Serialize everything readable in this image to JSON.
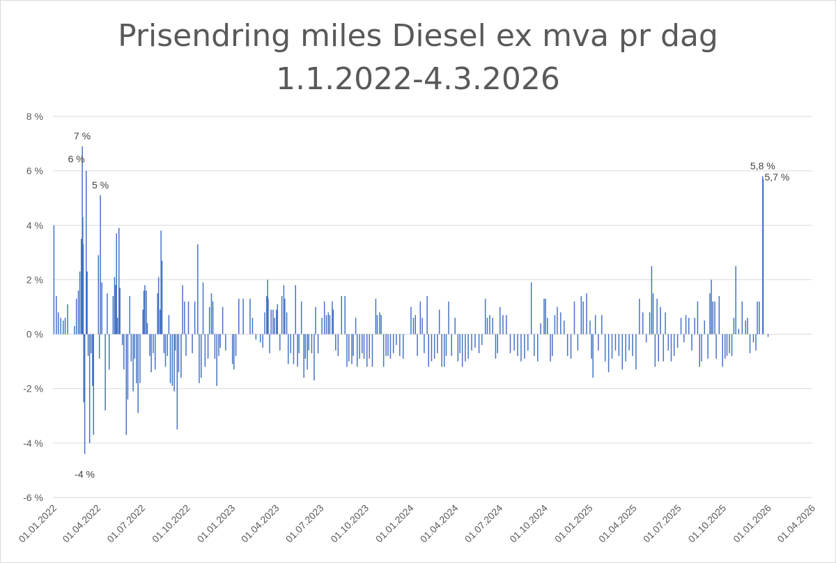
{
  "chart_data": {
    "type": "bar",
    "title_line1": "Prisendring miles Diesel ex mva pr dag",
    "title_line2": "1.1.2022-4.3.2026",
    "xlabel": "",
    "ylabel": "",
    "ylim": [
      -6,
      8
    ],
    "y_ticks": [
      {
        "value": 8,
        "label": "8 %"
      },
      {
        "value": 6,
        "label": "6 %"
      },
      {
        "value": 4,
        "label": "4 %"
      },
      {
        "value": 2,
        "label": "2 %"
      },
      {
        "value": 0,
        "label": "0 %"
      },
      {
        "value": -2,
        "label": "-2 %"
      },
      {
        "value": -4,
        "label": "-4 %"
      },
      {
        "value": -6,
        "label": "-6 %"
      }
    ],
    "x_range": [
      "2022-01-01",
      "2026-04-01"
    ],
    "x_ticks": [
      {
        "date": "2022-01-01",
        "label": "01.01.2022"
      },
      {
        "date": "2022-04-01",
        "label": "01.04.2022"
      },
      {
        "date": "2022-07-01",
        "label": "01.07.2022"
      },
      {
        "date": "2022-10-01",
        "label": "01.10.2022"
      },
      {
        "date": "2023-01-01",
        "label": "01.01.2023"
      },
      {
        "date": "2023-04-01",
        "label": "01.04.2023"
      },
      {
        "date": "2023-07-01",
        "label": "01.07.2023"
      },
      {
        "date": "2023-10-01",
        "label": "01.10.2023"
      },
      {
        "date": "2024-01-01",
        "label": "01.01.2024"
      },
      {
        "date": "2024-04-01",
        "label": "01.04.2024"
      },
      {
        "date": "2024-07-01",
        "label": "01.07.2024"
      },
      {
        "date": "2024-10-01",
        "label": "01.10.2024"
      },
      {
        "date": "2025-01-01",
        "label": "01.01.2025"
      },
      {
        "date": "2025-04-01",
        "label": "01.04.2025"
      },
      {
        "date": "2025-07-01",
        "label": "01.07.2025"
      },
      {
        "date": "2025-10-01",
        "label": "01.10.2025"
      },
      {
        "date": "2026-01-01",
        "label": "01.01.2026"
      },
      {
        "date": "2026-04-01",
        "label": "01.04.2026"
      }
    ],
    "grid": true,
    "legend": "none",
    "bar_color": "#4472c4",
    "values": [
      [
        "2022-01-03",
        4.0
      ],
      [
        "2022-01-08",
        1.4
      ],
      [
        "2022-01-12",
        0.8
      ],
      [
        "2022-01-17",
        0.6
      ],
      [
        "2022-01-22",
        0.5
      ],
      [
        "2022-01-26",
        0.6
      ],
      [
        "2022-01-31",
        1.1
      ],
      [
        "2022-02-14",
        0.3
      ],
      [
        "2022-02-18",
        1.3
      ],
      [
        "2022-02-22",
        1.6
      ],
      [
        "2022-02-25",
        2.3
      ],
      [
        "2022-02-28",
        3.5
      ],
      [
        "2022-03-02",
        6.9
      ],
      [
        "2022-03-03",
        4.3
      ],
      [
        "2022-03-04",
        3.3
      ],
      [
        "2022-03-05",
        -2.5
      ],
      [
        "2022-03-07",
        -4.4
      ],
      [
        "2022-03-10",
        6.0
      ],
      [
        "2022-03-12",
        2.3
      ],
      [
        "2022-03-14",
        -0.8
      ],
      [
        "2022-03-17",
        -4.0
      ],
      [
        "2022-03-20",
        -0.7
      ],
      [
        "2022-03-23",
        -1.9
      ],
      [
        "2022-03-25",
        -3.7
      ],
      [
        "2022-04-04",
        2.9
      ],
      [
        "2022-04-06",
        -0.9
      ],
      [
        "2022-04-08",
        5.1
      ],
      [
        "2022-04-11",
        1.9
      ],
      [
        "2022-04-18",
        -2.8
      ],
      [
        "2022-04-22",
        1.5
      ],
      [
        "2022-04-26",
        -1.3
      ],
      [
        "2022-05-04",
        1.4
      ],
      [
        "2022-05-07",
        2.1
      ],
      [
        "2022-05-09",
        1.8
      ],
      [
        "2022-05-11",
        3.7
      ],
      [
        "2022-05-13",
        0.6
      ],
      [
        "2022-05-16",
        3.9
      ],
      [
        "2022-05-18",
        1.7
      ],
      [
        "2022-05-23",
        -0.4
      ],
      [
        "2022-05-26",
        -1.3
      ],
      [
        "2022-05-31",
        -3.7
      ],
      [
        "2022-06-03",
        -2.4
      ],
      [
        "2022-06-07",
        1.4
      ],
      [
        "2022-06-10",
        -1.0
      ],
      [
        "2022-06-14",
        -2.1
      ],
      [
        "2022-06-17",
        -0.9
      ],
      [
        "2022-06-21",
        -1.8
      ],
      [
        "2022-06-24",
        -2.9
      ],
      [
        "2022-06-28",
        -1.8
      ],
      [
        "2022-07-04",
        0.9
      ],
      [
        "2022-07-06",
        1.6
      ],
      [
        "2022-07-08",
        1.8
      ],
      [
        "2022-07-11",
        1.6
      ],
      [
        "2022-07-13",
        0.4
      ],
      [
        "2022-07-18",
        -0.8
      ],
      [
        "2022-07-21",
        -1.4
      ],
      [
        "2022-07-25",
        -0.7
      ],
      [
        "2022-07-29",
        -1.3
      ],
      [
        "2022-08-03",
        1.5
      ],
      [
        "2022-08-05",
        2.1
      ],
      [
        "2022-08-08",
        0.9
      ],
      [
        "2022-08-10",
        3.8
      ],
      [
        "2022-08-12",
        2.7
      ],
      [
        "2022-08-16",
        -0.7
      ],
      [
        "2022-08-19",
        -1.2
      ],
      [
        "2022-08-23",
        -0.8
      ],
      [
        "2022-08-26",
        0.7
      ],
      [
        "2022-08-29",
        -1.8
      ],
      [
        "2022-09-02",
        -1.9
      ],
      [
        "2022-09-06",
        -2.1
      ],
      [
        "2022-09-08",
        -0.6
      ],
      [
        "2022-09-12",
        -3.5
      ],
      [
        "2022-09-15",
        -1.4
      ],
      [
        "2022-09-20",
        -1.6
      ],
      [
        "2022-09-23",
        1.8
      ],
      [
        "2022-09-27",
        1.2
      ],
      [
        "2022-09-30",
        -0.8
      ],
      [
        "2022-10-05",
        1.2
      ],
      [
        "2022-10-13",
        -0.7
      ],
      [
        "2022-10-18",
        1.2
      ],
      [
        "2022-10-24",
        3.3
      ],
      [
        "2022-10-27",
        -1.8
      ],
      [
        "2022-10-31",
        -1.6
      ],
      [
        "2022-11-04",
        1.9
      ],
      [
        "2022-11-08",
        -1.2
      ],
      [
        "2022-11-14",
        -0.9
      ],
      [
        "2022-11-17",
        1.0
      ],
      [
        "2022-11-21",
        1.5
      ],
      [
        "2022-11-24",
        1.2
      ],
      [
        "2022-11-28",
        -0.9
      ],
      [
        "2022-12-02",
        -1.9
      ],
      [
        "2022-12-06",
        -0.8
      ],
      [
        "2022-12-09",
        -0.5
      ],
      [
        "2022-12-14",
        1.0
      ],
      [
        "2022-12-20",
        -0.6
      ],
      [
        "2023-01-03",
        -1.1
      ],
      [
        "2023-01-06",
        -1.3
      ],
      [
        "2023-01-10",
        -0.8
      ],
      [
        "2023-01-16",
        1.3
      ],
      [
        "2023-01-25",
        1.3
      ],
      [
        "2023-02-08",
        1.3
      ],
      [
        "2023-02-13",
        0.6
      ],
      [
        "2023-02-20",
        -0.2
      ],
      [
        "2023-03-01",
        -0.3
      ],
      [
        "2023-03-06",
        -0.5
      ],
      [
        "2023-03-10",
        0.8
      ],
      [
        "2023-03-14",
        1.4
      ],
      [
        "2023-03-16",
        2.0
      ],
      [
        "2023-03-17",
        1.3
      ],
      [
        "2023-03-20",
        -0.7
      ],
      [
        "2023-03-23",
        0.9
      ],
      [
        "2023-03-27",
        0.9
      ],
      [
        "2023-03-30",
        0.6
      ],
      [
        "2023-04-03",
        0.9
      ],
      [
        "2023-04-05",
        1.1
      ],
      [
        "2023-04-10",
        -0.6
      ],
      [
        "2023-04-14",
        1.4
      ],
      [
        "2023-04-18",
        1.8
      ],
      [
        "2023-04-20",
        1.3
      ],
      [
        "2023-04-24",
        0.8
      ],
      [
        "2023-04-27",
        -1.1
      ],
      [
        "2023-05-02",
        -0.7
      ],
      [
        "2023-05-08",
        -1.1
      ],
      [
        "2023-05-12",
        1.8
      ],
      [
        "2023-05-16",
        -1.2
      ],
      [
        "2023-05-19",
        -0.7
      ],
      [
        "2023-05-24",
        1.2
      ],
      [
        "2023-05-29",
        -1.6
      ],
      [
        "2023-06-01",
        -0.9
      ],
      [
        "2023-06-05",
        -1.3
      ],
      [
        "2023-06-08",
        -0.6
      ],
      [
        "2023-06-14",
        -0.7
      ],
      [
        "2023-06-19",
        -1.7
      ],
      [
        "2023-06-22",
        1.0
      ],
      [
        "2023-06-27",
        -0.7
      ],
      [
        "2023-07-05",
        0.6
      ],
      [
        "2023-07-10",
        1.2
      ],
      [
        "2023-07-14",
        0.7
      ],
      [
        "2023-07-18",
        0.8
      ],
      [
        "2023-07-21",
        0.7
      ],
      [
        "2023-07-26",
        1.2
      ],
      [
        "2023-07-28",
        0.9
      ],
      [
        "2023-08-02",
        -0.6
      ],
      [
        "2023-08-07",
        -0.8
      ],
      [
        "2023-08-14",
        1.4
      ],
      [
        "2023-08-21",
        1.4
      ],
      [
        "2023-08-25",
        -1.2
      ],
      [
        "2023-08-29",
        -1.0
      ],
      [
        "2023-09-04",
        -1.1
      ],
      [
        "2023-09-07",
        -0.8
      ],
      [
        "2023-09-12",
        0.6
      ],
      [
        "2023-09-15",
        -1.2
      ],
      [
        "2023-09-20",
        -0.9
      ],
      [
        "2023-09-25",
        -0.7
      ],
      [
        "2023-09-29",
        -0.9
      ],
      [
        "2023-10-05",
        -1.2
      ],
      [
        "2023-10-10",
        -0.9
      ],
      [
        "2023-10-16",
        -1.2
      ],
      [
        "2023-10-23",
        1.3
      ],
      [
        "2023-10-26",
        0.7
      ],
      [
        "2023-10-31",
        0.8
      ],
      [
        "2023-11-03",
        0.7
      ],
      [
        "2023-11-08",
        -1.2
      ],
      [
        "2023-11-13",
        -0.8
      ],
      [
        "2023-11-17",
        -0.8
      ],
      [
        "2023-11-22",
        -0.9
      ],
      [
        "2023-11-28",
        -0.7
      ],
      [
        "2023-12-04",
        -0.4
      ],
      [
        "2023-12-11",
        -0.8
      ],
      [
        "2023-12-18",
        -0.9
      ],
      [
        "2024-01-03",
        1.0
      ],
      [
        "2024-01-08",
        0.6
      ],
      [
        "2024-01-12",
        0.7
      ],
      [
        "2024-01-16",
        -0.8
      ],
      [
        "2024-01-22",
        1.2
      ],
      [
        "2024-01-26",
        0.6
      ],
      [
        "2024-01-30",
        -0.7
      ],
      [
        "2024-02-05",
        1.4
      ],
      [
        "2024-02-08",
        -1.2
      ],
      [
        "2024-02-14",
        -1.0
      ],
      [
        "2024-02-20",
        -0.9
      ],
      [
        "2024-02-26",
        -0.7
      ],
      [
        "2024-03-01",
        0.9
      ],
      [
        "2024-03-06",
        -1.2
      ],
      [
        "2024-03-11",
        -1.2
      ],
      [
        "2024-03-15",
        -0.8
      ],
      [
        "2024-03-20",
        1.2
      ],
      [
        "2024-03-26",
        -0.8
      ],
      [
        "2024-04-02",
        0.6
      ],
      [
        "2024-04-08",
        -1.0
      ],
      [
        "2024-04-12",
        -0.7
      ],
      [
        "2024-04-17",
        -1.2
      ],
      [
        "2024-04-23",
        -1.0
      ],
      [
        "2024-04-29",
        -0.9
      ],
      [
        "2024-05-06",
        -0.6
      ],
      [
        "2024-05-13",
        -0.5
      ],
      [
        "2024-05-21",
        -0.7
      ],
      [
        "2024-05-27",
        -0.4
      ],
      [
        "2024-06-03",
        1.3
      ],
      [
        "2024-06-07",
        0.6
      ],
      [
        "2024-06-12",
        0.7
      ],
      [
        "2024-06-18",
        0.6
      ],
      [
        "2024-06-24",
        -0.9
      ],
      [
        "2024-06-28",
        -0.7
      ],
      [
        "2024-07-03",
        1.0
      ],
      [
        "2024-07-09",
        0.7
      ],
      [
        "2024-07-16",
        0.7
      ],
      [
        "2024-07-24",
        -0.7
      ],
      [
        "2024-08-01",
        -0.6
      ],
      [
        "2024-08-08",
        -0.8
      ],
      [
        "2024-08-15",
        -1.0
      ],
      [
        "2024-08-22",
        -0.9
      ],
      [
        "2024-08-29",
        -0.6
      ],
      [
        "2024-09-05",
        1.9
      ],
      [
        "2024-09-11",
        -0.8
      ],
      [
        "2024-09-18",
        -1.0
      ],
      [
        "2024-09-24",
        0.4
      ],
      [
        "2024-10-01",
        1.3
      ],
      [
        "2024-10-04",
        1.3
      ],
      [
        "2024-10-08",
        0.6
      ],
      [
        "2024-10-14",
        -1.0
      ],
      [
        "2024-10-18",
        -0.8
      ],
      [
        "2024-10-23",
        0.7
      ],
      [
        "2024-10-28",
        1.0
      ],
      [
        "2024-11-04",
        0.8
      ],
      [
        "2024-11-11",
        0.5
      ],
      [
        "2024-11-18",
        -0.8
      ],
      [
        "2024-11-25",
        -0.9
      ],
      [
        "2024-12-02",
        1.2
      ],
      [
        "2024-12-09",
        -0.6
      ],
      [
        "2024-12-16",
        1.4
      ],
      [
        "2024-12-20",
        1.2
      ],
      [
        "2024-12-27",
        1.5
      ],
      [
        "2025-01-03",
        0.5
      ],
      [
        "2025-01-06",
        -0.9
      ],
      [
        "2025-01-09",
        -1.6
      ],
      [
        "2025-01-14",
        0.7
      ],
      [
        "2025-01-20",
        -0.6
      ],
      [
        "2025-01-27",
        0.7
      ],
      [
        "2025-02-03",
        -1.0
      ],
      [
        "2025-02-10",
        -1.4
      ],
      [
        "2025-02-17",
        -0.9
      ],
      [
        "2025-02-24",
        -0.6
      ],
      [
        "2025-03-03",
        -0.8
      ],
      [
        "2025-03-10",
        -1.3
      ],
      [
        "2025-03-17",
        -1.0
      ],
      [
        "2025-03-24",
        -0.6
      ],
      [
        "2025-03-31",
        -0.8
      ],
      [
        "2025-04-07",
        -1.3
      ],
      [
        "2025-04-14",
        1.3
      ],
      [
        "2025-04-21",
        0.8
      ],
      [
        "2025-04-28",
        -0.3
      ],
      [
        "2025-05-05",
        0.8
      ],
      [
        "2025-05-09",
        2.5
      ],
      [
        "2025-05-12",
        1.5
      ],
      [
        "2025-05-16",
        -1.2
      ],
      [
        "2025-05-20",
        1.3
      ],
      [
        "2025-05-23",
        -1.0
      ],
      [
        "2025-05-27",
        1.0
      ],
      [
        "2025-06-02",
        -1.0
      ],
      [
        "2025-06-06",
        0.8
      ],
      [
        "2025-06-12",
        -0.6
      ],
      [
        "2025-06-18",
        -1.0
      ],
      [
        "2025-06-24",
        -0.8
      ],
      [
        "2025-07-01",
        -0.5
      ],
      [
        "2025-07-08",
        0.6
      ],
      [
        "2025-07-14",
        -0.3
      ],
      [
        "2025-07-18",
        0.7
      ],
      [
        "2025-07-24",
        0.6
      ],
      [
        "2025-07-30",
        -0.6
      ],
      [
        "2025-08-05",
        0.6
      ],
      [
        "2025-08-11",
        1.2
      ],
      [
        "2025-08-15",
        -1.2
      ],
      [
        "2025-08-19",
        -1.0
      ],
      [
        "2025-08-25",
        0.5
      ],
      [
        "2025-09-01",
        -0.9
      ],
      [
        "2025-09-05",
        1.5
      ],
      [
        "2025-09-08",
        2.0
      ],
      [
        "2025-09-11",
        1.2
      ],
      [
        "2025-09-15",
        1.2
      ],
      [
        "2025-09-18",
        -0.9
      ],
      [
        "2025-09-24",
        1.4
      ],
      [
        "2025-10-01",
        -1.2
      ],
      [
        "2025-10-06",
        -0.9
      ],
      [
        "2025-10-10",
        -0.8
      ],
      [
        "2025-10-15",
        -0.7
      ],
      [
        "2025-10-20",
        -0.8
      ],
      [
        "2025-10-24",
        0.6
      ],
      [
        "2025-10-28",
        2.5
      ],
      [
        "2025-11-03",
        0.2
      ],
      [
        "2025-11-10",
        1.2
      ],
      [
        "2025-11-17",
        0.5
      ],
      [
        "2025-11-21",
        0.6
      ],
      [
        "2025-11-26",
        -0.7
      ],
      [
        "2025-12-03",
        -0.3
      ],
      [
        "2025-12-08",
        -0.6
      ],
      [
        "2025-12-11",
        1.2
      ],
      [
        "2025-12-15",
        1.2
      ],
      [
        "2025-12-22",
        5.8
      ],
      [
        "2025-12-23",
        5.7
      ],
      [
        "2026-01-02",
        -0.1
      ]
    ],
    "annotations": [
      {
        "date": "2022-03-02",
        "value": 6.9,
        "label": "7 %",
        "pos": "above"
      },
      {
        "date": "2022-03-10",
        "value": 6.0,
        "label": "6 %",
        "pos": "left"
      },
      {
        "date": "2022-04-08",
        "value": 5.1,
        "label": "5 %",
        "pos": "above"
      },
      {
        "date": "2022-03-07",
        "value": -4.4,
        "label": "-4 %",
        "pos": "below"
      },
      {
        "date": "2025-12-22",
        "value": 5.8,
        "label": "5,8 %",
        "pos": "above"
      },
      {
        "date": "2025-12-23",
        "value": 5.7,
        "label": "5,7 %",
        "pos": "right"
      }
    ]
  }
}
